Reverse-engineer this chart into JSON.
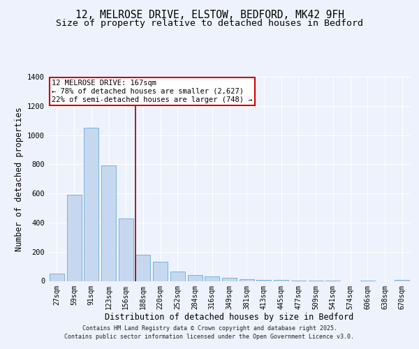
{
  "title_line1": "12, MELROSE DRIVE, ELSTOW, BEDFORD, MK42 9FH",
  "title_line2": "Size of property relative to detached houses in Bedford",
  "xlabel": "Distribution of detached houses by size in Bedford",
  "ylabel": "Number of detached properties",
  "bar_labels": [
    "27sqm",
    "59sqm",
    "91sqm",
    "123sqm",
    "156sqm",
    "188sqm",
    "220sqm",
    "252sqm",
    "284sqm",
    "316sqm",
    "349sqm",
    "381sqm",
    "413sqm",
    "445sqm",
    "477sqm",
    "509sqm",
    "541sqm",
    "574sqm",
    "606sqm",
    "638sqm",
    "670sqm"
  ],
  "bar_heights": [
    50,
    590,
    1050,
    790,
    430,
    180,
    130,
    65,
    40,
    30,
    20,
    10,
    8,
    5,
    3,
    3,
    2,
    0,
    2,
    0,
    5
  ],
  "bar_color": "#c5d8f0",
  "bar_edge_color": "#6aaad4",
  "ylim": [
    0,
    1400
  ],
  "yticks": [
    0,
    200,
    400,
    600,
    800,
    1000,
    1200,
    1400
  ],
  "vline_x_index": 4.55,
  "vline_color": "#8b0000",
  "annotation_text": "12 MELROSE DRIVE: 167sqm\n← 78% of detached houses are smaller (2,627)\n22% of semi-detached houses are larger (748) →",
  "annotation_box_color": "#ffffff",
  "annotation_box_edge": "#cc0000",
  "footer_line1": "Contains HM Land Registry data © Crown copyright and database right 2025.",
  "footer_line2": "Contains public sector information licensed under the Open Government Licence v3.0.",
  "bg_color": "#eef2fc",
  "plot_bg_color": "#eef2fc",
  "grid_color": "#ffffff",
  "title_fontsize": 10.5,
  "subtitle_fontsize": 9.5,
  "tick_fontsize": 7,
  "ylabel_fontsize": 8.5,
  "xlabel_fontsize": 8.5,
  "footer_fontsize": 6.0,
  "annot_fontsize": 7.5
}
